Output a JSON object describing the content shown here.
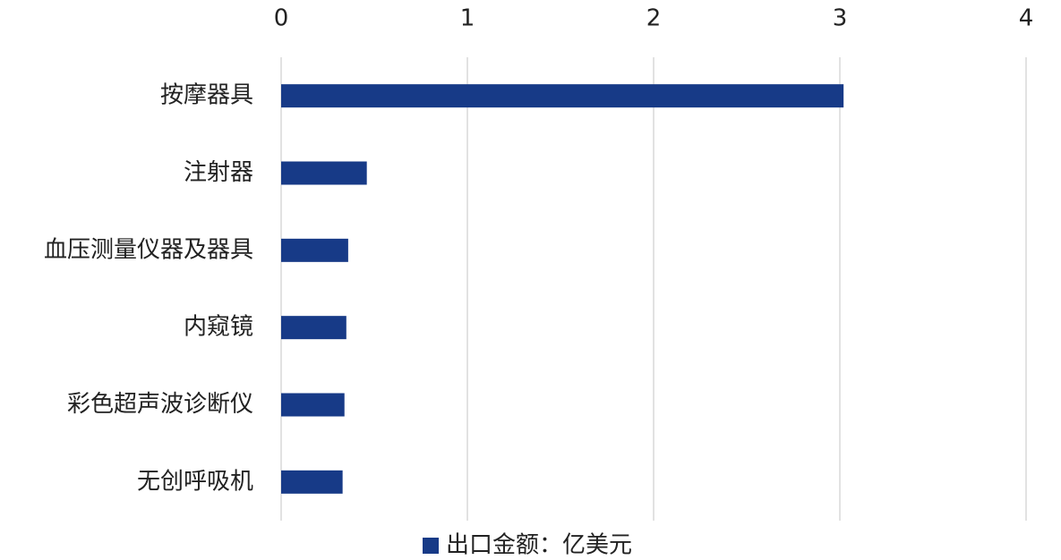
{
  "chart_data": {
    "type": "bar",
    "orientation": "horizontal",
    "categories": [
      "按摩器具",
      "注射器",
      "血压测量仪器及器具",
      "内窥镜",
      "彩色超声波诊断仪",
      "无创呼吸机"
    ],
    "series": [
      {
        "name": "出口金额：亿美元",
        "color": "#173a87",
        "values": [
          3.02,
          0.46,
          0.36,
          0.35,
          0.34,
          0.33
        ]
      }
    ],
    "xlim": [
      0,
      4
    ],
    "xticks": [
      0,
      1,
      2,
      3,
      4
    ],
    "grid": true,
    "legend": "bottom"
  }
}
